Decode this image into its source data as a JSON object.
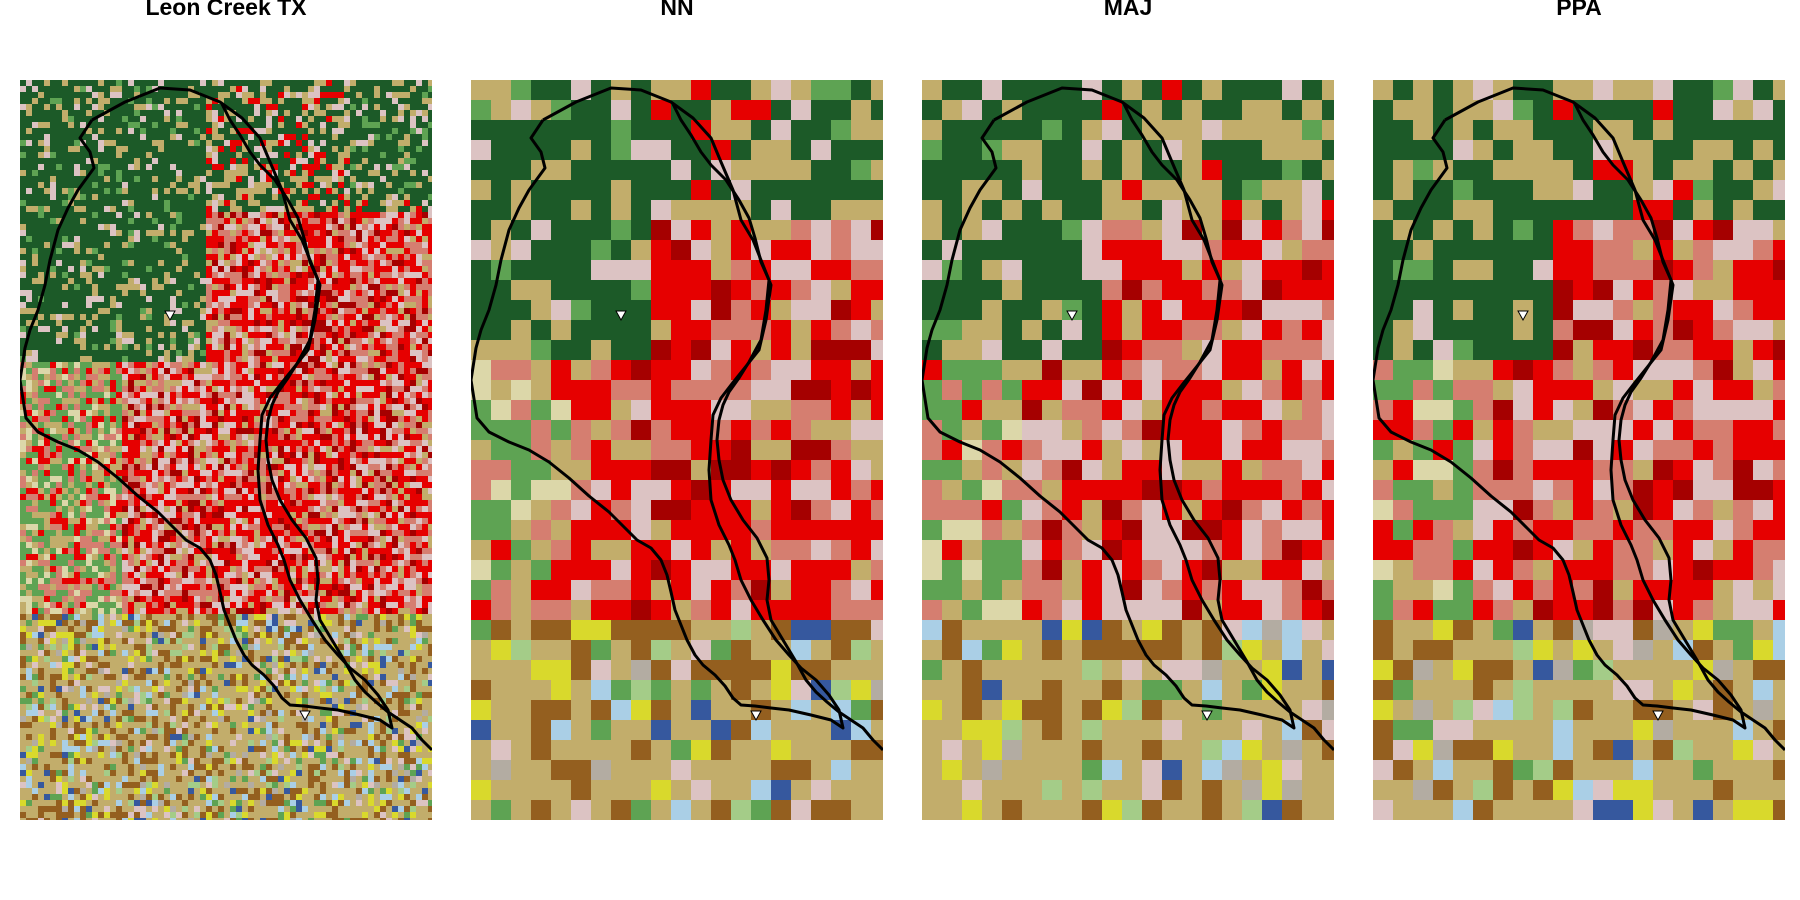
{
  "panels": [
    {
      "title": "Leon Creek TX",
      "detail": "fine",
      "outlet_markers": 2
    },
    {
      "title": "NN",
      "detail": "coarse",
      "outlet_markers": 2
    },
    {
      "title": "MAJ",
      "detail": "coarse",
      "outlet_markers": 2
    },
    {
      "title": "PPA",
      "detail": "coarse",
      "outlet_markers": 2
    }
  ],
  "land_cover_colors": {
    "evergreen_forest": "#1c5a28",
    "shrub_scrub": "#c2ad6b",
    "grassland": "#dcd7a9",
    "mixed_forest": "#5ea353",
    "developed_open": "#dcc3c3",
    "developed_low": "#d57e70",
    "developed_medium": "#e60000",
    "developed_high": "#a50000",
    "pasture_hay": "#945f1f",
    "cultivated_crops": "#d9d92c",
    "open_water": "#aacfe6",
    "wetlands": "#36589e",
    "barren": "#b3aca2",
    "herbaceous": "#a4cc88"
  },
  "watershed_outline_color": "#000000",
  "outlet_marker_color": "#ffffff"
}
